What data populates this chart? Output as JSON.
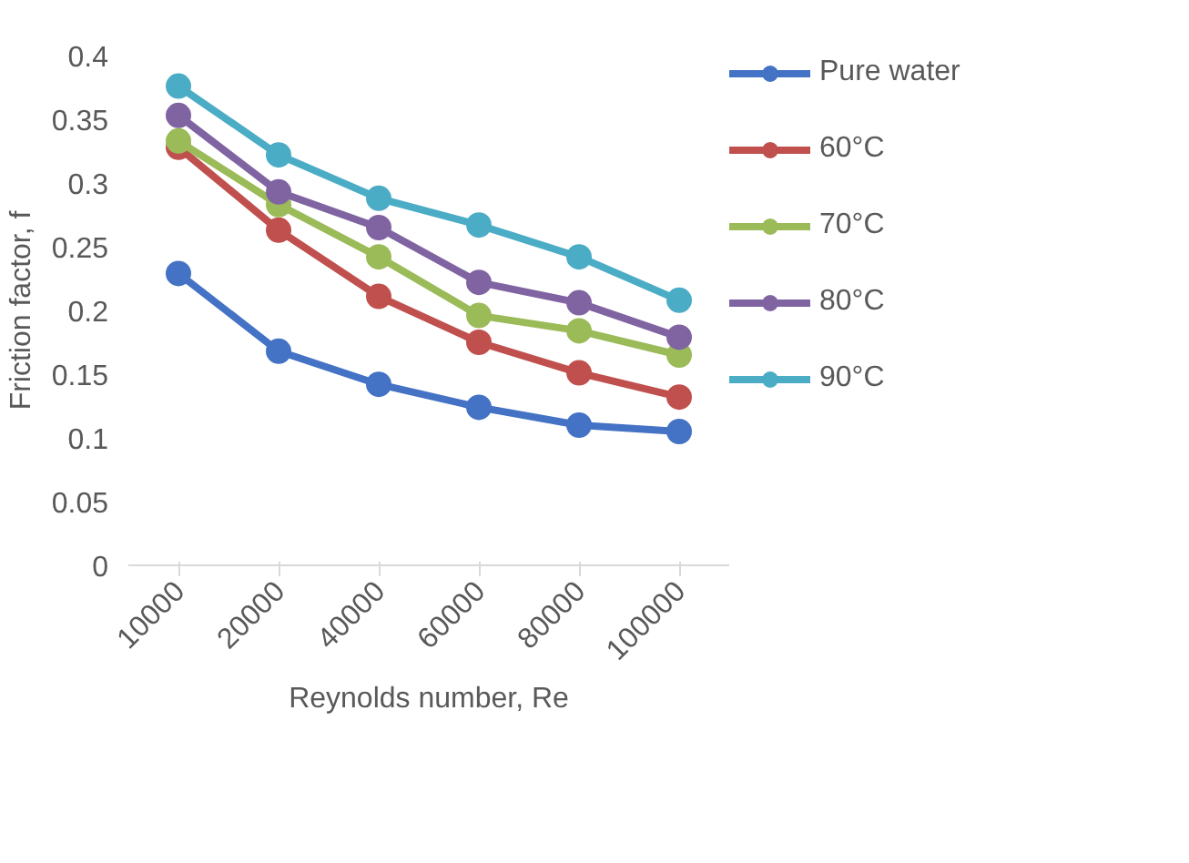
{
  "chart_data": {
    "type": "line",
    "xlabel": "Reynolds number, Re",
    "ylabel": "Friction factor, f",
    "categories": [
      "10000",
      "20000",
      "40000",
      "60000",
      "80000",
      "100000"
    ],
    "ylim": [
      0,
      0.4
    ],
    "yticks": [
      0,
      0.05,
      0.1,
      0.15,
      0.2,
      0.25,
      0.3,
      0.35,
      0.4
    ],
    "grid": false,
    "legend": "right",
    "marker": "circle",
    "line_style": "solid",
    "series": [
      {
        "name": "Pure water",
        "color": "#4472c4",
        "values": [
          0.229,
          0.168,
          0.142,
          0.124,
          0.11,
          0.105
        ]
      },
      {
        "name": "60°C",
        "color": "#c0504d",
        "values": [
          0.328,
          0.263,
          0.211,
          0.175,
          0.151,
          0.132
        ]
      },
      {
        "name": "70°C",
        "color": "#9bbb59",
        "values": [
          0.333,
          0.283,
          0.242,
          0.196,
          0.184,
          0.165
        ]
      },
      {
        "name": "80°C",
        "color": "#8064a2",
        "values": [
          0.353,
          0.293,
          0.265,
          0.222,
          0.206,
          0.179
        ]
      },
      {
        "name": "90°C",
        "color": "#4bacc6",
        "values": [
          0.376,
          0.322,
          0.288,
          0.267,
          0.242,
          0.208
        ]
      }
    ]
  }
}
